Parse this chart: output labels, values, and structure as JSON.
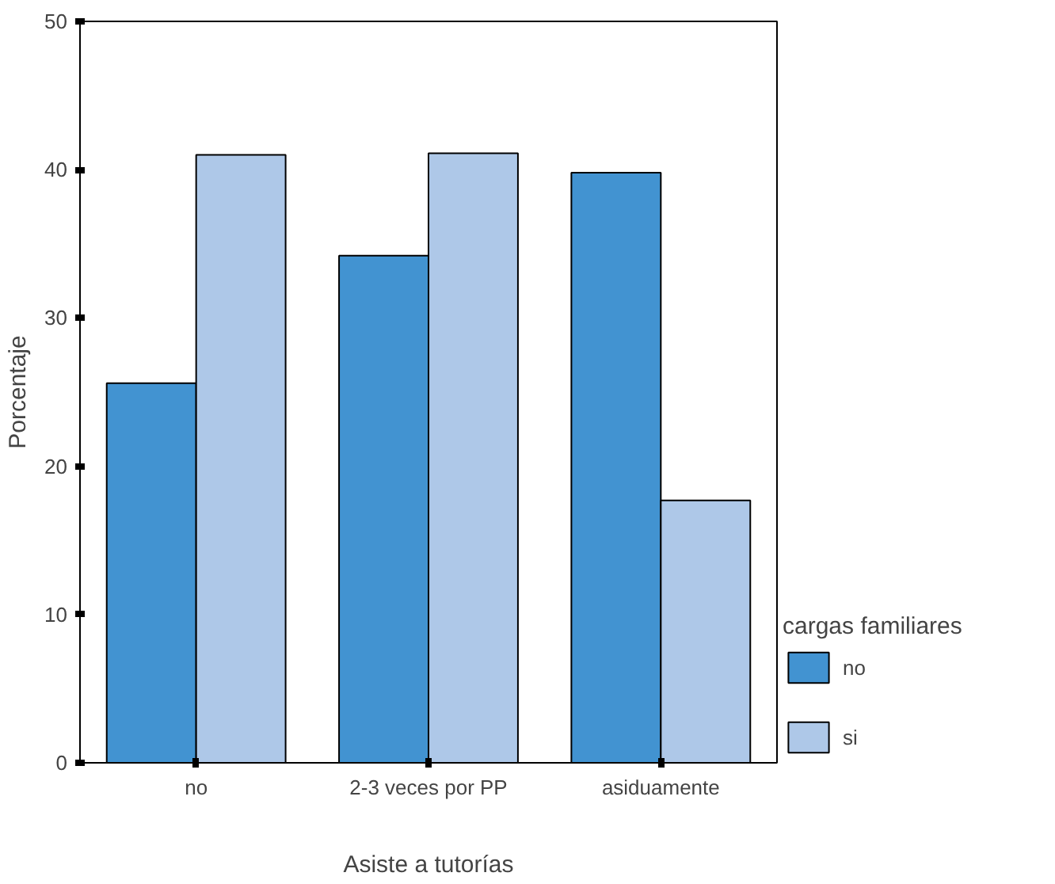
{
  "chart_data": {
    "type": "bar",
    "xlabel": "Asiste a tutorías",
    "ylabel": "Porcentaje",
    "legend_title": "cargas familiares",
    "categories": [
      "no",
      "2-3 veces por PP",
      "asiduamente"
    ],
    "series": [
      {
        "name": "no",
        "color": "#4293d1",
        "values": [
          25.6,
          34.2,
          39.8
        ]
      },
      {
        "name": "si",
        "color": "#aec8e8",
        "values": [
          41.0,
          41.1,
          17.7
        ]
      }
    ],
    "ylim": [
      0,
      50
    ],
    "yticks": [
      0,
      10,
      20,
      30,
      40,
      50
    ],
    "grid": false,
    "legend": "right"
  }
}
